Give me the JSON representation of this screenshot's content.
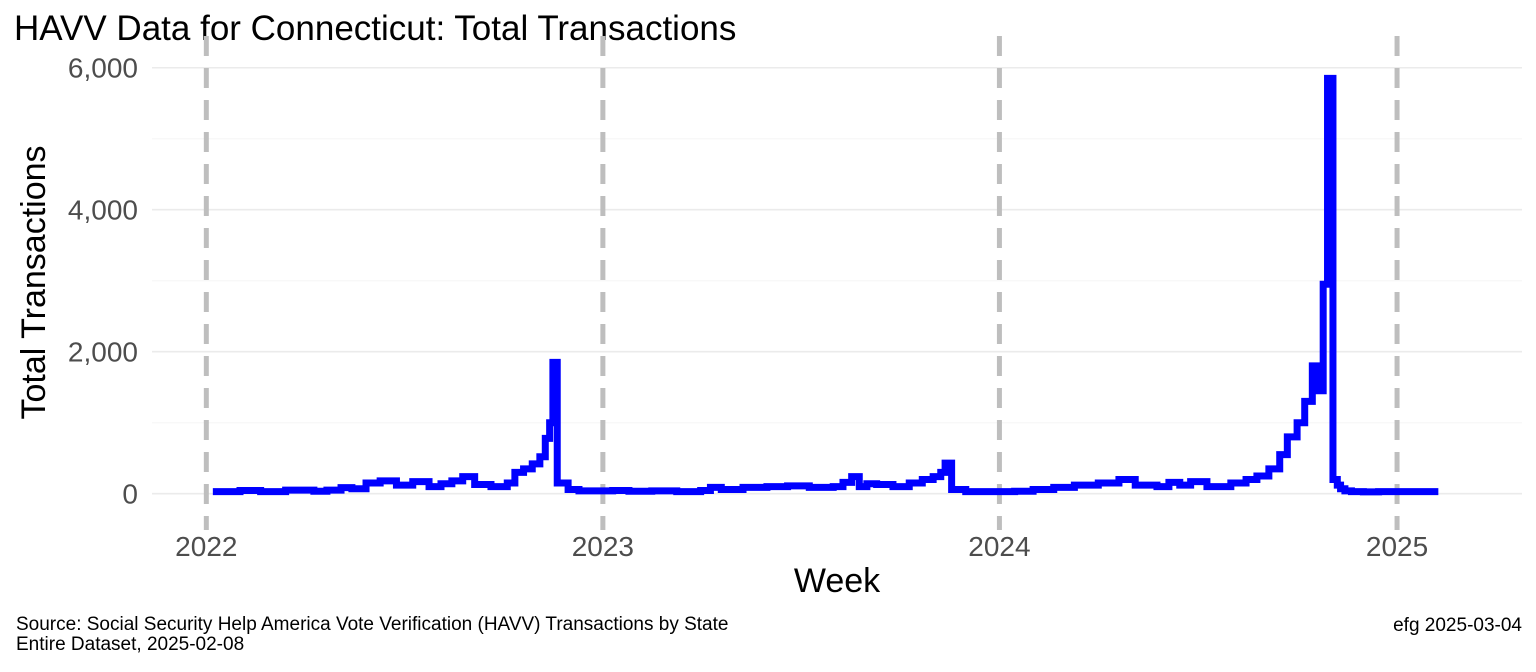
{
  "chart_data": {
    "type": "line",
    "title": "HAVV Data for Connecticut:  Total Transactions",
    "xlabel": "Week",
    "ylabel": "Total Transactions",
    "y_ticks": [
      0,
      2000,
      4000,
      6000
    ],
    "y_tick_labels": [
      "0",
      "2,000",
      "4,000",
      "6,000"
    ],
    "x_ticks": [
      "2022-01-01",
      "2023-01-01",
      "2024-01-01",
      "2025-01-01"
    ],
    "x_tick_labels": [
      "2022",
      "2023",
      "2024",
      "2025"
    ],
    "vlines": [
      "2022-01-01",
      "2023-01-01",
      "2024-01-01",
      "2025-01-01"
    ],
    "xlim": [
      "2021-11-12",
      "2025-04-26"
    ],
    "ylim": [
      -300,
      6250
    ],
    "step": true,
    "grid": true,
    "line_color": "#0000ff",
    "vline_color": "#bebebe",
    "series": [
      {
        "x": [
          "2022-01-07",
          "2022-02-01",
          "2022-02-20",
          "2022-03-15",
          "2022-04-10",
          "2022-04-22",
          "2022-05-05",
          "2022-05-15",
          "2022-05-28",
          "2022-06-10",
          "2022-06-25",
          "2022-07-10",
          "2022-07-25",
          "2022-08-05",
          "2022-08-15",
          "2022-08-25",
          "2022-09-05",
          "2022-09-20",
          "2022-09-28",
          "2022-10-05",
          "2022-10-12",
          "2022-10-20",
          "2022-10-28",
          "2022-11-04",
          "2022-11-09",
          "2022-11-13",
          "2022-11-16",
          "2022-11-20",
          "2022-11-30",
          "2022-12-10",
          "2023-01-10",
          "2023-01-25",
          "2023-02-15",
          "2023-03-10",
          "2023-04-01",
          "2023-04-10",
          "2023-04-20",
          "2023-05-10",
          "2023-06-01",
          "2023-06-20",
          "2023-07-10",
          "2023-08-01",
          "2023-08-10",
          "2023-08-18",
          "2023-08-25",
          "2023-09-01",
          "2023-09-10",
          "2023-09-25",
          "2023-10-10",
          "2023-10-22",
          "2023-11-01",
          "2023-11-08",
          "2023-11-12",
          "2023-11-18",
          "2023-12-01",
          "2024-01-15",
          "2024-02-01",
          "2024-02-20",
          "2024-03-10",
          "2024-04-01",
          "2024-04-20",
          "2024-05-05",
          "2024-05-25",
          "2024-06-05",
          "2024-06-15",
          "2024-06-25",
          "2024-07-10",
          "2024-08-01",
          "2024-08-15",
          "2024-08-25",
          "2024-09-05",
          "2024-09-15",
          "2024-09-22",
          "2024-10-01",
          "2024-10-08",
          "2024-10-15",
          "2024-10-20",
          "2024-10-25",
          "2024-10-29",
          "2024-11-03",
          "2024-11-07",
          "2024-11-10",
          "2024-11-14",
          "2024-11-20",
          "2024-12-01",
          "2024-12-15",
          "2025-01-15",
          "2025-02-08"
        ],
        "y": [
          30,
          45,
          30,
          50,
          35,
          50,
          85,
          70,
          150,
          180,
          120,
          170,
          100,
          140,
          180,
          240,
          130,
          100,
          100,
          150,
          300,
          350,
          420,
          520,
          780,
          1000,
          1850,
          150,
          60,
          40,
          45,
          35,
          40,
          30,
          45,
          90,
          60,
          90,
          100,
          110,
          90,
          100,
          160,
          240,
          100,
          140,
          130,
          100,
          150,
          200,
          240,
          300,
          430,
          60,
          30,
          35,
          60,
          90,
          120,
          150,
          200,
          120,
          100,
          160,
          120,
          170,
          100,
          150,
          200,
          250,
          350,
          550,
          800,
          1000,
          1300,
          1800,
          1450,
          2950,
          5850,
          200,
          120,
          70,
          40,
          30,
          25,
          30,
          30,
          30
        ]
      }
    ]
  },
  "caption": {
    "source_line1": "Source:  Social Security Help America Vote Verification (HAVV) Transactions by State",
    "source_line2": "Entire Dataset, 2025-02-08",
    "credit": "efg 2025-03-04"
  }
}
